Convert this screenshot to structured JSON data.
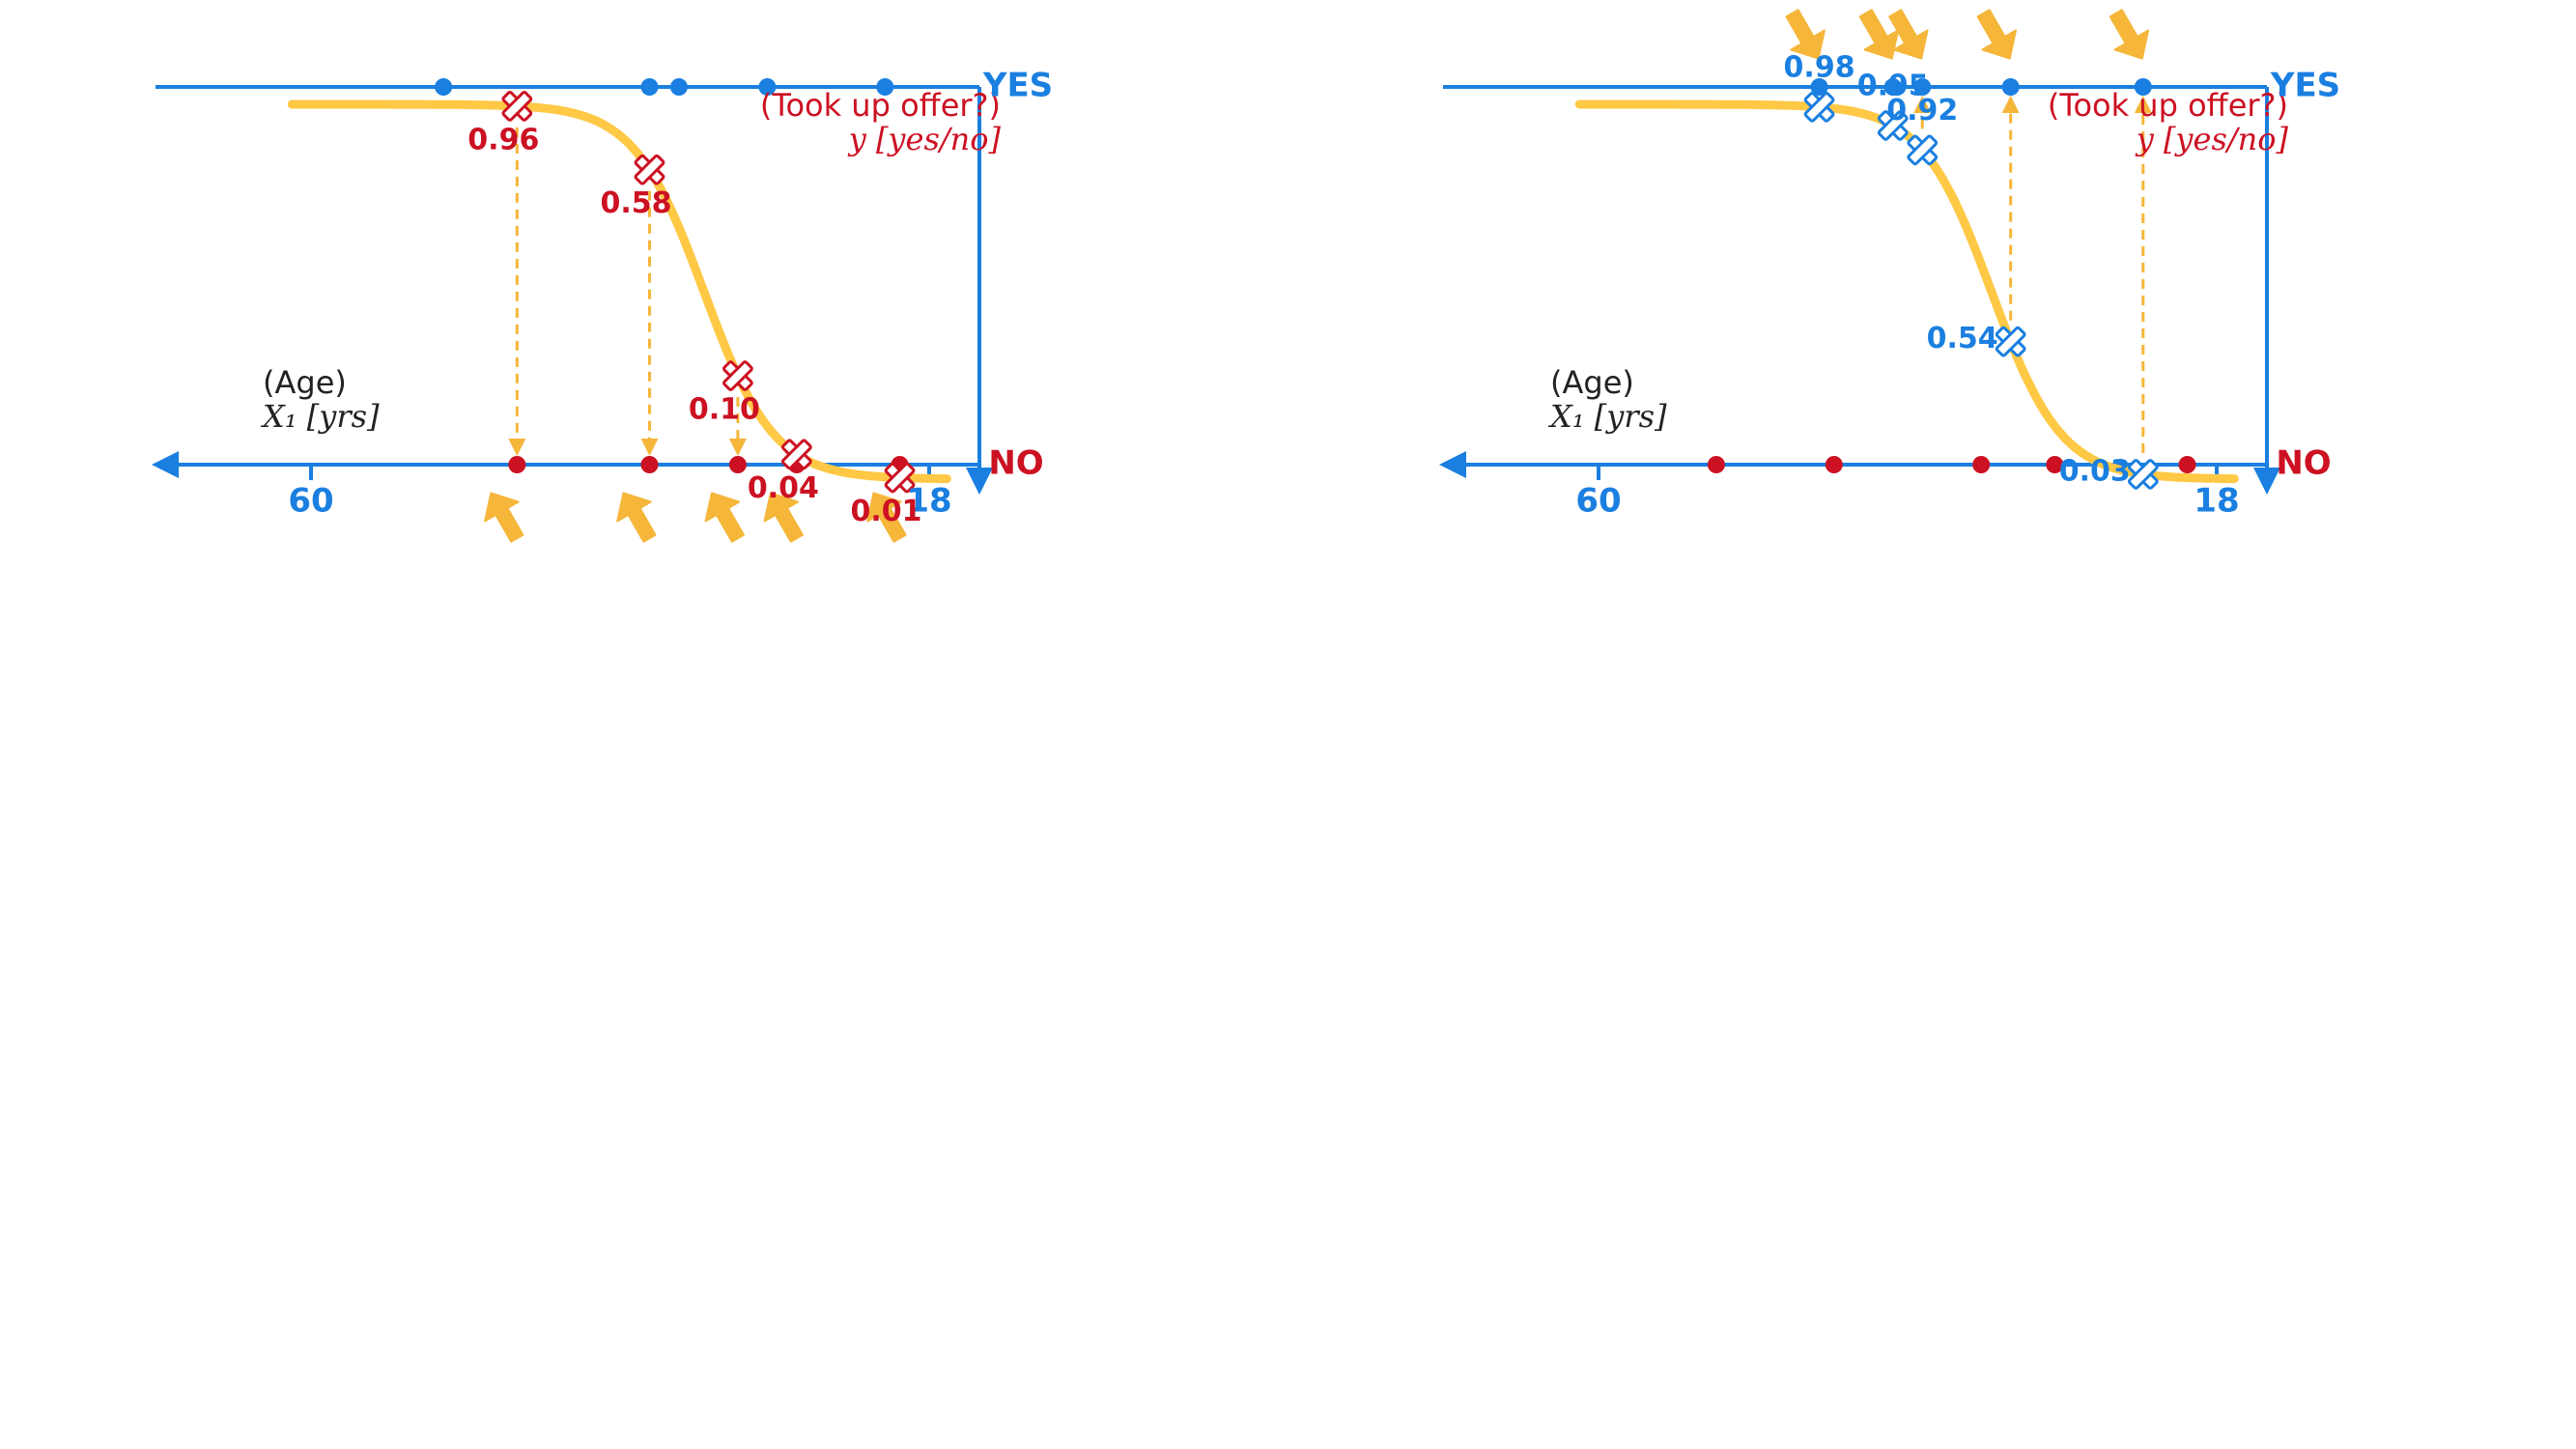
{
  "colors": {
    "axis": "#1a7fe0",
    "neg": "#cc1122",
    "curve": "#ffc845",
    "arrow": "#f5b63a"
  },
  "charts": [
    {
      "id": "left",
      "y_label_line1": "y [yes/no]",
      "y_label_line2": "(Took up offer?)",
      "yes_label": "YES",
      "no_label": "NO",
      "x_label_line1": "X₁ [yrs]",
      "x_label_line2": "(Age)",
      "tick_min_label": "18",
      "tick_max_label": "60",
      "yes_points": [
        {
          "age": 23,
          "prob_label": "0.03",
          "prob": 0.03
        },
        {
          "age": 32,
          "prob_label": "0.54",
          "prob": 0.54
        },
        {
          "age": 38,
          "prob_label": "0.92",
          "prob": 0.92
        },
        {
          "age": 40,
          "prob_label": "0.95",
          "prob": 0.95
        },
        {
          "age": 45,
          "prob_label": "0.98",
          "prob": 0.98
        }
      ],
      "no_points": [
        {
          "age": 20
        },
        {
          "age": 29
        },
        {
          "age": 34
        },
        {
          "age": 44
        },
        {
          "age": 52
        }
      ],
      "highlight": "yes"
    },
    {
      "id": "right",
      "y_label_line1": "y [yes/no]",
      "y_label_line2": "(Took up offer?)",
      "yes_label": "YES",
      "no_label": "NO",
      "x_label_line1": "X₁ [yrs]",
      "x_label_line2": "(Age)",
      "tick_min_label": "18",
      "tick_max_label": "60",
      "no_points": [
        {
          "age": 20,
          "prob_label": "0.01",
          "prob": 0.01
        },
        {
          "age": 27,
          "prob_label": "0.04",
          "prob": 0.04
        },
        {
          "age": 31,
          "prob_label": "0.10",
          "prob": 0.1
        },
        {
          "age": 37,
          "prob_label": "0.58",
          "prob": 0.58
        },
        {
          "age": 46,
          "prob_label": "0.96",
          "prob": 0.96
        }
      ],
      "yes_points": [
        {
          "age": 21
        },
        {
          "age": 29
        },
        {
          "age": 35
        },
        {
          "age": 37
        },
        {
          "age": 51
        }
      ],
      "highlight": "no"
    }
  ]
}
